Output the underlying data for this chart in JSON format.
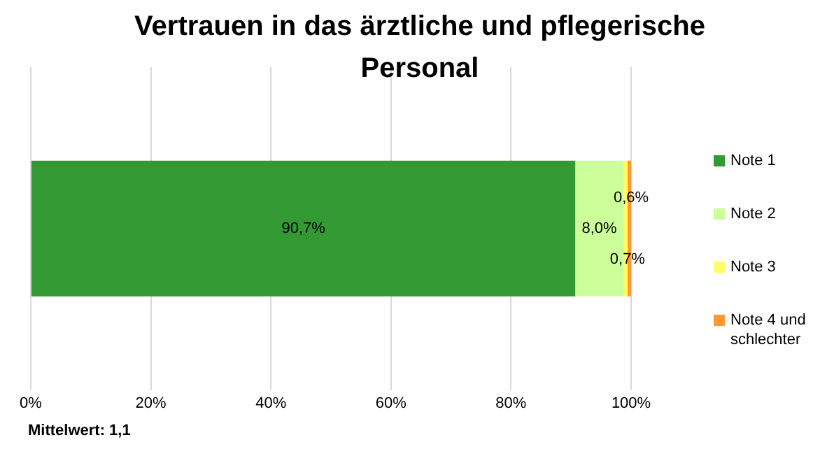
{
  "chart_data": {
    "type": "bar",
    "orientation": "horizontal",
    "stacked": true,
    "title": "Vertrauen in das ärztliche und pflegerische Personal",
    "categories": [
      null
    ],
    "series": [
      {
        "name": "Note 1",
        "color": "#339933",
        "values": [
          90.7
        ],
        "value_labels": [
          "90,7%"
        ]
      },
      {
        "name": "Note 2",
        "color": "#ccff99",
        "values": [
          8.0
        ],
        "value_labels": [
          "8,0%"
        ]
      },
      {
        "name": "Note 3",
        "color": "#ffff66",
        "values": [
          0.7
        ],
        "value_labels": [
          "0,7%"
        ]
      },
      {
        "name": "Note 4 und schlechter",
        "color": "#ff9933",
        "values": [
          0.6
        ],
        "value_labels": [
          "0,6%"
        ]
      }
    ],
    "xlim": [
      0,
      100
    ],
    "xticks": [
      {
        "value": 0,
        "label": "0%"
      },
      {
        "value": 20,
        "label": "20%"
      },
      {
        "value": 40,
        "label": "40%"
      },
      {
        "value": 60,
        "label": "60%"
      },
      {
        "value": 80,
        "label": "80%"
      },
      {
        "value": 100,
        "label": "100%"
      }
    ],
    "grid": "x",
    "legend": "right",
    "annotations": [
      "Mittelwert: 1,1"
    ]
  }
}
